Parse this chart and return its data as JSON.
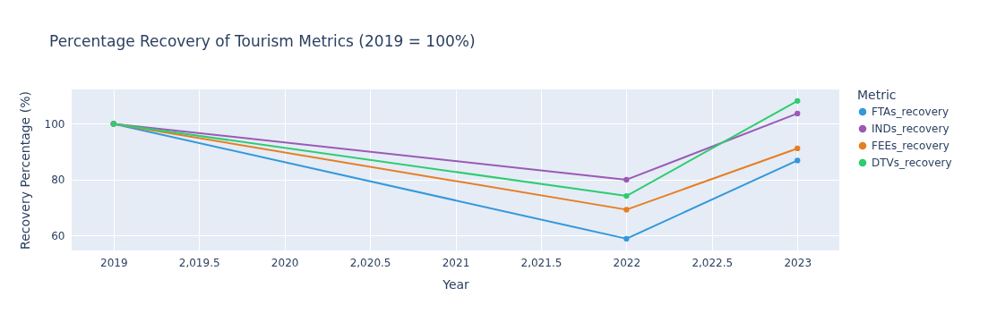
{
  "chart_data": {
    "type": "line",
    "title": "Percentage Recovery of Tourism Metrics (2019 = 100%)",
    "xlabel": "Year",
    "ylabel": "Recovery Percentage (%)",
    "legend_title": "Metric",
    "x": [
      2019,
      2022,
      2023
    ],
    "series": [
      {
        "name": "FTAs_recovery",
        "color": "#3498db",
        "values": [
          100,
          58.9,
          86.9
        ]
      },
      {
        "name": "INDs_recovery",
        "color": "#9b59b6",
        "values": [
          100,
          80,
          103.7
        ]
      },
      {
        "name": "FEEs_recovery",
        "color": "#e67e22",
        "values": [
          100,
          69.3,
          91.2
        ]
      },
      {
        "name": "DTVs_recovery",
        "color": "#2ecc71",
        "values": [
          100,
          74.2,
          108.2
        ]
      }
    ],
    "xlim": [
      2018.755,
      2023.245
    ],
    "xticks": [
      2019,
      {
        "value": 2019.5,
        "label": "2,019.5"
      },
      2020,
      {
        "value": 2020.5,
        "label": "2,020.5"
      },
      2021,
      {
        "value": 2021.5,
        "label": "2,021.5"
      },
      2022,
      {
        "value": 2022.5,
        "label": "2,022.5"
      },
      2023
    ],
    "ylim": [
      54.7,
      112.3
    ],
    "yticks": [
      60,
      80,
      100
    ],
    "grid": true,
    "legend": "right",
    "marker": "circle",
    "line_style": "solid"
  }
}
